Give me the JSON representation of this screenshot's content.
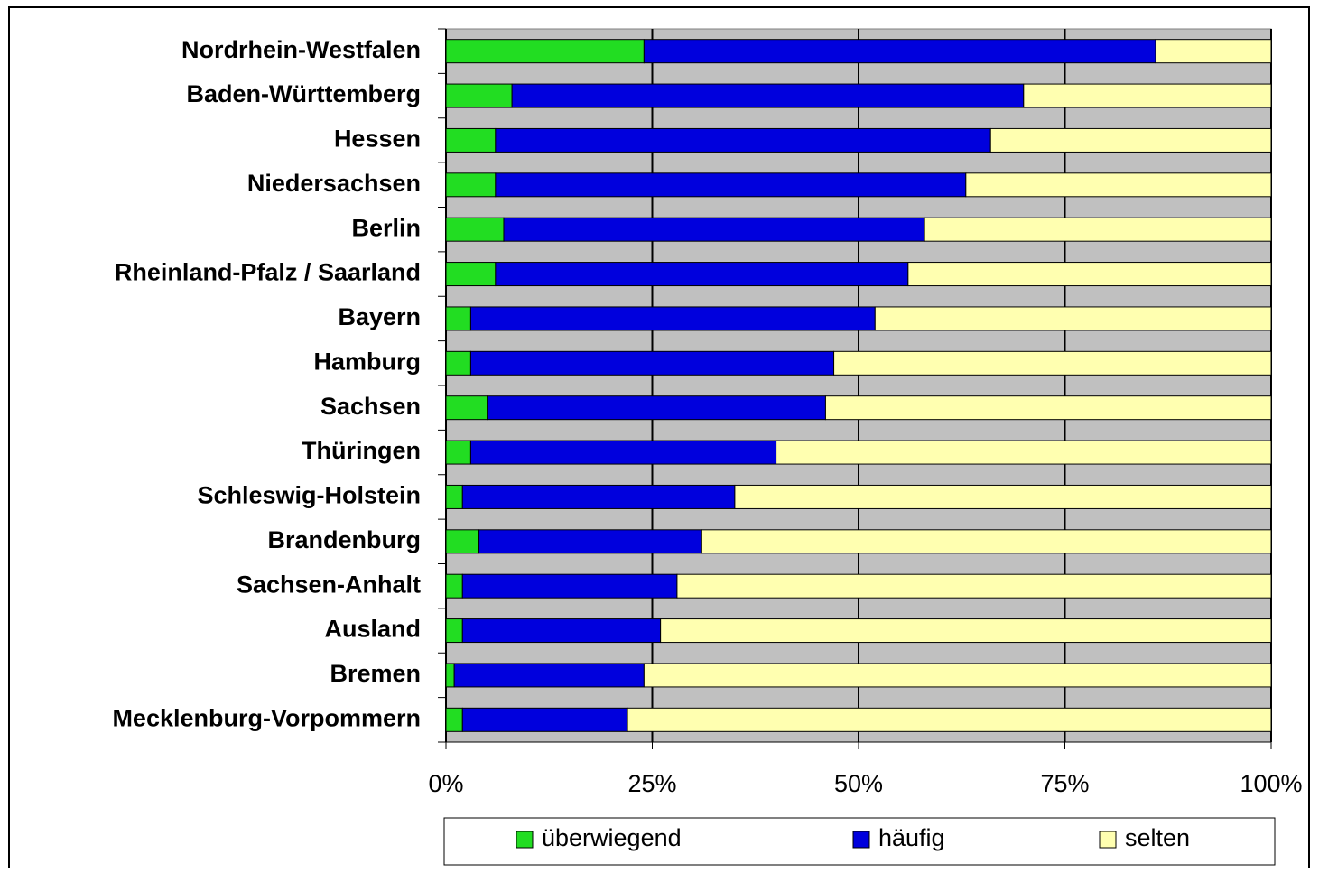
{
  "chart_data": {
    "type": "stacked-bar-horizontal",
    "categories": [
      "Nordrhein-Westfalen",
      "Baden-Württemberg",
      "Hessen",
      "Niedersachsen",
      "Berlin",
      "Rheinland-Pfalz / Saarland",
      "Bayern",
      "Hamburg",
      "Sachsen",
      "Thüringen",
      "Schleswig-Holstein",
      "Brandenburg",
      "Sachsen-Anhalt",
      "Ausland",
      "Bremen",
      "Mecklenburg-Vorpommern"
    ],
    "series": [
      {
        "name": "überwiegend",
        "color": "#22dd22",
        "values": [
          24,
          8,
          6,
          6,
          7,
          6,
          3,
          3,
          5,
          3,
          2,
          4,
          2,
          2,
          1,
          2
        ]
      },
      {
        "name": "häufig",
        "color": "#0000dd",
        "values": [
          62,
          62,
          60,
          57,
          51,
          50,
          49,
          44,
          41,
          37,
          33,
          27,
          26,
          24,
          23,
          20
        ]
      },
      {
        "name": "selten",
        "color": "#ffffb0",
        "values": [
          14,
          30,
          34,
          37,
          42,
          44,
          48,
          53,
          54,
          60,
          65,
          69,
          72,
          74,
          76,
          78
        ]
      }
    ],
    "xlim": [
      0,
      100
    ],
    "xticks": [
      {
        "value": 0,
        "label": "0%"
      },
      {
        "value": 25,
        "label": "25%"
      },
      {
        "value": 50,
        "label": "50%"
      },
      {
        "value": 75,
        "label": "75%"
      },
      {
        "value": 100,
        "label": "100%"
      }
    ],
    "grid": true,
    "legend": "bottom"
  }
}
